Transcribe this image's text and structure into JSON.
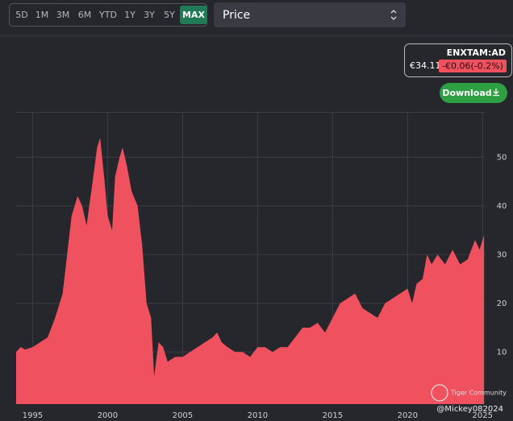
{
  "toolbar": {
    "ranges": [
      "5D",
      "1M",
      "3M",
      "6M",
      "YTD",
      "1Y",
      "3Y",
      "5Y",
      "MAX"
    ],
    "selected": "MAX"
  },
  "dropdown": {
    "label": "Price"
  },
  "quote": {
    "ticker": "ENXTAM:AD",
    "price": "€34.11",
    "change": "-€0.06(-0.2%)"
  },
  "download": "Download",
  "watermark": {
    "brand": "Tiger Community",
    "user": "@Mickey082024"
  },
  "chart_data": {
    "type": "area",
    "color": "#f0515f",
    "grid": true,
    "x": [
      1993.9,
      1994.2,
      1994.5,
      1995,
      1995.5,
      1996,
      1996.5,
      1997,
      1997.3,
      1997.6,
      1998,
      1998.3,
      1998.6,
      1999,
      1999.3,
      1999.5,
      1999.8,
      2000,
      2000.3,
      2000.5,
      2000.8,
      2001,
      2001.3,
      2001.6,
      2002,
      2002.3,
      2002.6,
      2002.9,
      2003.1,
      2003.4,
      2003.7,
      2004,
      2004.5,
      2005,
      2005.5,
      2006,
      2006.5,
      2007,
      2007.3,
      2007.6,
      2008,
      2008.5,
      2009,
      2009.5,
      2010,
      2010.5,
      2011,
      2011.5,
      2012,
      2012.5,
      2013,
      2013.5,
      2014,
      2014.5,
      2015,
      2015.5,
      2016,
      2016.5,
      2017,
      2017.5,
      2018,
      2018.5,
      2019,
      2019.5,
      2020,
      2020.3,
      2020.6,
      2021,
      2021.3,
      2021.6,
      2022,
      2022.5,
      2023,
      2023.5,
      2024,
      2024.5,
      2024.8,
      2025.1
    ],
    "values": [
      10,
      11,
      10.5,
      11,
      12,
      13,
      17,
      22,
      30,
      38,
      42,
      40,
      36,
      45,
      52,
      54,
      45,
      38,
      35,
      46,
      50,
      52,
      48,
      43,
      40,
      32,
      20,
      17,
      5,
      12,
      11,
      8,
      9,
      9,
      10,
      11,
      12,
      13,
      14,
      12,
      11,
      10,
      10,
      9,
      11,
      11,
      10,
      11,
      11,
      13,
      15,
      15,
      16,
      14,
      17,
      20,
      21,
      22,
      19,
      18,
      17,
      20,
      21,
      22,
      23,
      20,
      24,
      25,
      30,
      28,
      30,
      28,
      31,
      28,
      29,
      33,
      31,
      34
    ],
    "xlim": [
      1993.9,
      2025.2
    ],
    "xticks": [
      1995,
      2000,
      2005,
      2010,
      2015,
      2020,
      2025
    ],
    "ylim": [
      -0.7,
      59.3
    ],
    "yticks": [
      10,
      20,
      30,
      40,
      50
    ]
  }
}
